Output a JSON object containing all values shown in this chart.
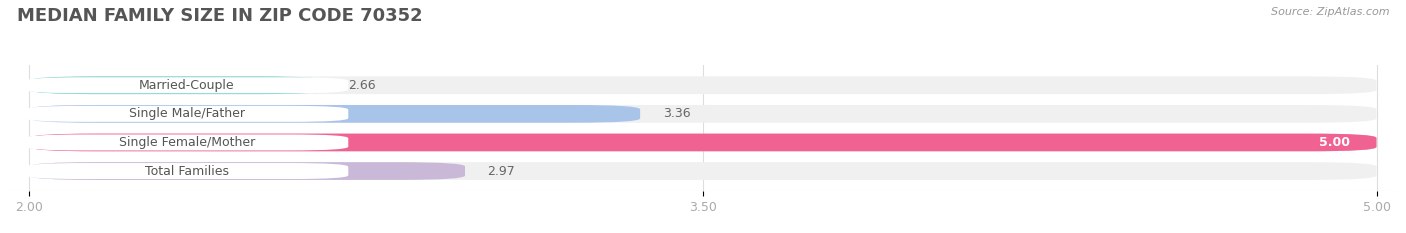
{
  "title": "MEDIAN FAMILY SIZE IN ZIP CODE 70352",
  "source": "Source: ZipAtlas.com",
  "categories": [
    "Married-Couple",
    "Single Male/Father",
    "Single Female/Mother",
    "Total Families"
  ],
  "values": [
    2.66,
    3.36,
    5.0,
    2.97
  ],
  "bar_colors": [
    "#72ceca",
    "#a8c4e8",
    "#f06292",
    "#c9b8d8"
  ],
  "xlim_min": 2.0,
  "xlim_max": 5.0,
  "xticks": [
    2.0,
    3.5,
    5.0
  ],
  "xtick_labels": [
    "2.00",
    "3.50",
    "5.00"
  ],
  "bg_color": "#ffffff",
  "bar_bg_color": "#f0f0f0",
  "label_bg_color": "#ffffff",
  "title_fontsize": 13,
  "label_fontsize": 9,
  "value_fontsize": 9,
  "source_fontsize": 8,
  "title_color": "#555555",
  "label_color": "#555555",
  "value_color": "#666666",
  "value_color_inside": "#ffffff",
  "source_color": "#999999",
  "tick_color": "#aaaaaa",
  "grid_color": "#dddddd"
}
